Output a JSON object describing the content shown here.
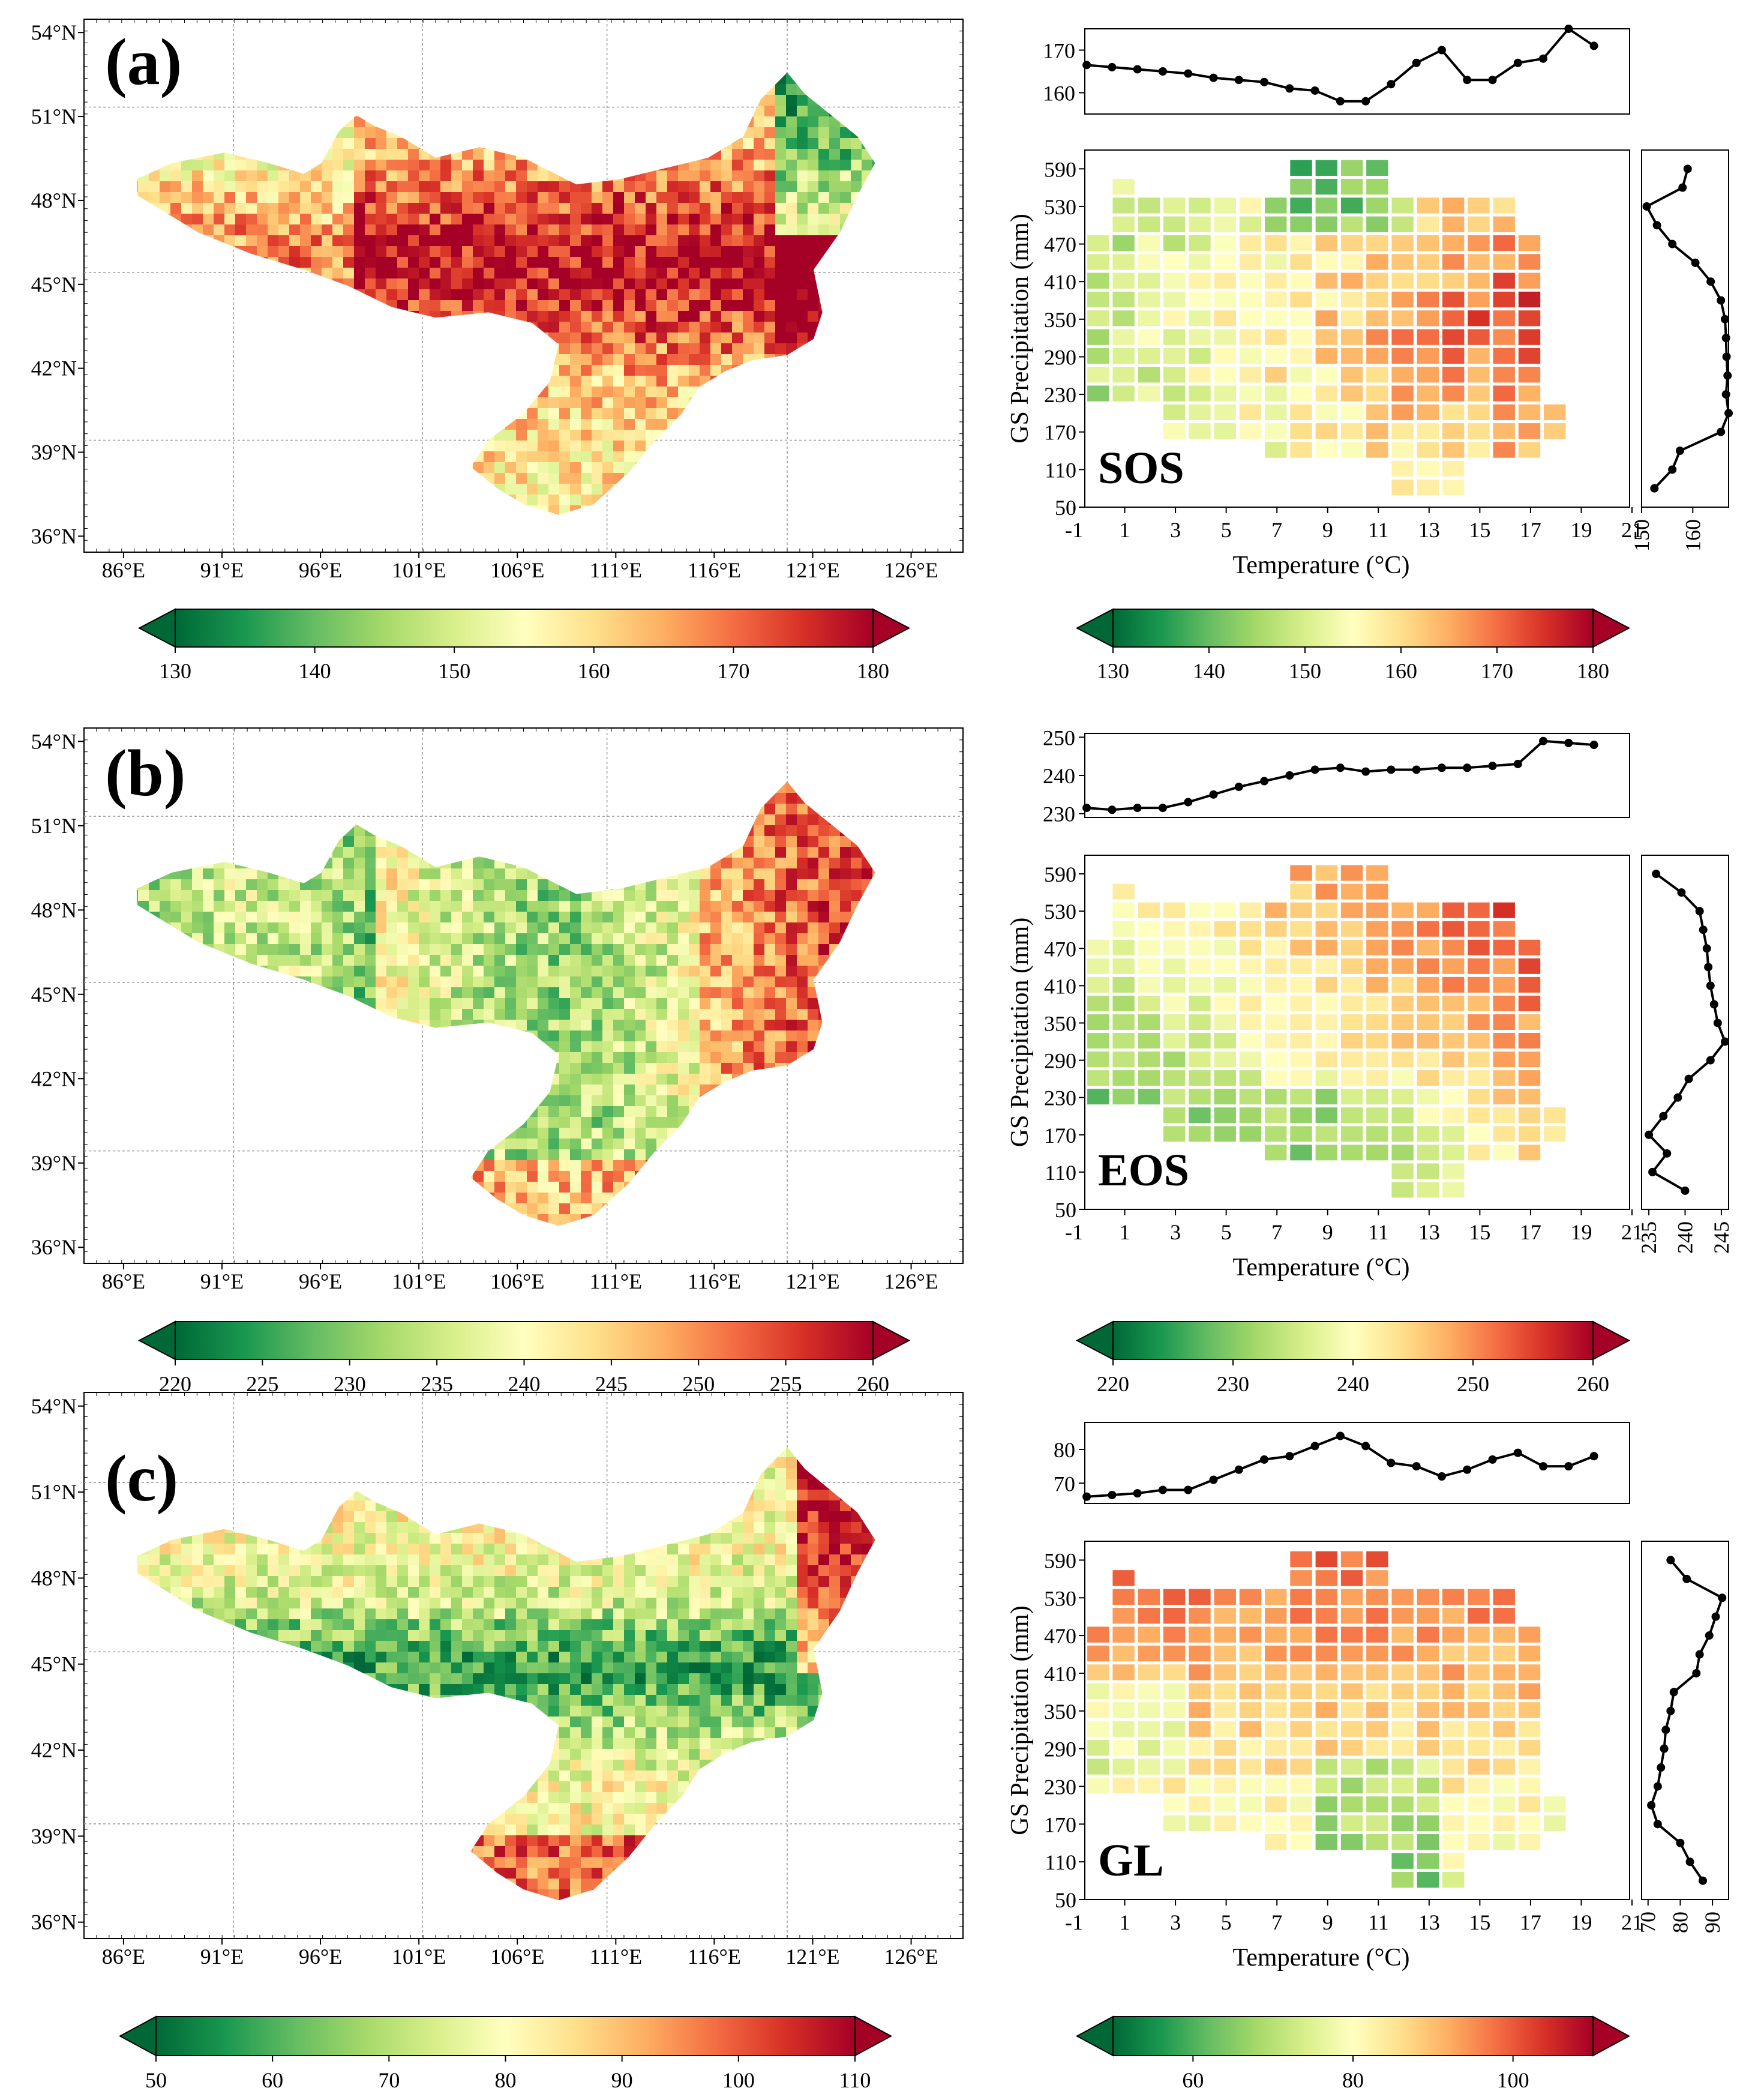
{
  "chart_data": [
    {
      "type": "map",
      "panel": "(a)",
      "description_label": "SOS",
      "lon_ticks": [
        "86°E",
        "91°E",
        "96°E",
        "101°E",
        "106°E",
        "111°E",
        "116°E",
        "121°E",
        "126°E"
      ],
      "lat_ticks": [
        "54°N",
        "51°N",
        "48°N",
        "45°N",
        "42°N",
        "39°N",
        "36°N"
      ],
      "colorbar": {
        "min": 130,
        "max": 180,
        "ticks": [
          "130",
          "140",
          "150",
          "160",
          "170",
          "180"
        ],
        "colormap": "RdYlGn_r"
      },
      "dominant": "high"
    },
    {
      "type": "line",
      "panel": "(a)-top",
      "axis": "temperature",
      "yticks": [
        "170",
        "160"
      ],
      "ylim": [
        155,
        175
      ],
      "x": [
        -0.5,
        0.5,
        1.5,
        2.5,
        3.5,
        4.5,
        5.5,
        6.5,
        7.5,
        8.5,
        9.5,
        10.5,
        11.5,
        12.5,
        13.5,
        14.5,
        15.5,
        16.5,
        17.5,
        18.5,
        19.5
      ],
      "values": [
        166.5,
        166,
        165.5,
        165,
        164.5,
        163.5,
        163,
        162.5,
        161,
        160.5,
        158,
        158,
        162,
        167,
        170,
        163,
        163,
        167,
        168,
        175,
        171
      ]
    },
    {
      "type": "heatmap",
      "panel": "(a)",
      "label": "SOS",
      "xlabel": "Temperature (°C)",
      "ylabel": "GS Precipitation (mm)",
      "xticks": [
        "-1",
        "1",
        "3",
        "5",
        "7",
        "9",
        "11",
        "13",
        "15",
        "17",
        "19",
        "21"
      ],
      "yticks": [
        "590",
        "530",
        "470",
        "410",
        "350",
        "290",
        "230",
        "170",
        "110",
        "50"
      ],
      "colorbar": {
        "min": 130,
        "max": 180,
        "ticks": [
          "130",
          "140",
          "150",
          "160",
          "170",
          "180"
        ]
      }
    },
    {
      "type": "line",
      "panel": "(a)-right",
      "axis": "precipitation",
      "xticks": [
        "150",
        "160"
      ],
      "xlim": [
        150,
        167
      ],
      "y": [
        80,
        110,
        140,
        170,
        200,
        230,
        260,
        290,
        320,
        350,
        380,
        410,
        440,
        470,
        500,
        530,
        560,
        590
      ],
      "values": [
        152.5,
        156,
        157.5,
        165.5,
        167,
        166.5,
        166.8,
        166.6,
        166.5,
        166.3,
        165.5,
        163.5,
        160.5,
        156,
        153,
        151,
        158,
        159
      ]
    },
    {
      "type": "map",
      "panel": "(b)",
      "description_label": "EOS",
      "lon_ticks": [
        "86°E",
        "91°E",
        "96°E",
        "101°E",
        "106°E",
        "111°E",
        "116°E",
        "121°E",
        "126°E"
      ],
      "lat_ticks": [
        "54°N",
        "51°N",
        "48°N",
        "45°N",
        "42°N",
        "39°N",
        "36°N"
      ],
      "colorbar": {
        "min": 220,
        "max": 260,
        "ticks": [
          "220",
          "225",
          "230",
          "235",
          "240",
          "245",
          "250",
          "255",
          "260"
        ],
        "colormap": "RdYlGn_r"
      },
      "dominant": "mid"
    },
    {
      "type": "line",
      "panel": "(b)-top",
      "axis": "temperature",
      "yticks": [
        "250",
        "240",
        "230"
      ],
      "ylim": [
        229,
        251
      ],
      "x": [
        -0.5,
        0.5,
        1.5,
        2.5,
        3.5,
        4.5,
        5.5,
        6.5,
        7.5,
        8.5,
        9.5,
        10.5,
        11.5,
        12.5,
        13.5,
        14.5,
        15.5,
        16.5,
        17.5,
        18.5,
        19.5
      ],
      "values": [
        231.5,
        231,
        231.5,
        231.5,
        233,
        235,
        237,
        238.5,
        240,
        241.5,
        242,
        241,
        241.5,
        241.5,
        242,
        242,
        242.5,
        243,
        249,
        248.5,
        248
      ]
    },
    {
      "type": "heatmap",
      "panel": "(b)",
      "label": "EOS",
      "xlabel": "Temperature (°C)",
      "ylabel": "GS Precipitation (mm)",
      "xticks": [
        "-1",
        "1",
        "3",
        "5",
        "7",
        "9",
        "11",
        "13",
        "15",
        "17",
        "19",
        "21"
      ],
      "yticks": [
        "590",
        "530",
        "470",
        "410",
        "350",
        "290",
        "230",
        "170",
        "110",
        "50"
      ],
      "colorbar": {
        "min": 220,
        "max": 260,
        "ticks": [
          "220",
          "230",
          "240",
          "250",
          "260"
        ]
      }
    },
    {
      "type": "line",
      "panel": "(b)-right",
      "axis": "precipitation",
      "xticks": [
        "235",
        "240",
        "245"
      ],
      "xlim": [
        234,
        246
      ],
      "y": [
        80,
        110,
        140,
        170,
        200,
        230,
        260,
        290,
        320,
        350,
        380,
        410,
        440,
        470,
        500,
        530,
        560,
        590
      ],
      "values": [
        240,
        235.5,
        237.5,
        235,
        237,
        239,
        240.5,
        243.5,
        245.5,
        244.5,
        244,
        243.5,
        243.2,
        243,
        242.5,
        242,
        239.5,
        236
      ]
    },
    {
      "type": "map",
      "panel": "(c)",
      "description_label": "GL",
      "lon_ticks": [
        "86°E",
        "91°E",
        "96°E",
        "101°E",
        "106°E",
        "111°E",
        "116°E",
        "121°E",
        "126°E"
      ],
      "lat_ticks": [
        "54°N",
        "51°N",
        "48°N",
        "45°N",
        "42°N",
        "39°N",
        "36°N"
      ],
      "colorbar": {
        "min": 50,
        "max": 110,
        "ticks": [
          "50",
          "60",
          "70",
          "80",
          "90",
          "100",
          "110"
        ],
        "colormap": "RdYlGn_r"
      },
      "dominant": "low"
    },
    {
      "type": "line",
      "panel": "(c)-top",
      "axis": "temperature",
      "yticks": [
        "80",
        "70"
      ],
      "ylim": [
        64,
        88
      ],
      "x": [
        -0.5,
        0.5,
        1.5,
        2.5,
        3.5,
        4.5,
        5.5,
        6.5,
        7.5,
        8.5,
        9.5,
        10.5,
        11.5,
        12.5,
        13.5,
        14.5,
        15.5,
        16.5,
        17.5,
        18.5,
        19.5
      ],
      "values": [
        66,
        66.5,
        67,
        68,
        68,
        71,
        74,
        77,
        78,
        81,
        84,
        81,
        76,
        75,
        72,
        74,
        77,
        79,
        75,
        75,
        78
      ]
    },
    {
      "type": "heatmap",
      "panel": "(c)",
      "label": "GL",
      "xlabel": "Temperature (°C)",
      "ylabel": "GS Precipitation (mm)",
      "xticks": [
        "-1",
        "1",
        "3",
        "5",
        "7",
        "9",
        "11",
        "13",
        "15",
        "17",
        "19",
        "21"
      ],
      "yticks": [
        "590",
        "530",
        "470",
        "410",
        "350",
        "290",
        "230",
        "170",
        "110",
        "50"
      ],
      "colorbar": {
        "min": 50,
        "max": 110,
        "ticks": [
          "60",
          "80",
          "100"
        ]
      }
    },
    {
      "type": "line",
      "panel": "(c)-right",
      "axis": "precipitation",
      "xticks": [
        "70",
        "80",
        "90"
      ],
      "xlim": [
        68,
        95
      ],
      "y": [
        80,
        110,
        140,
        170,
        200,
        230,
        260,
        290,
        320,
        350,
        380,
        410,
        440,
        470,
        500,
        530,
        560,
        590
      ],
      "values": [
        87,
        83,
        80,
        73,
        71,
        73,
        74,
        75,
        75.5,
        77,
        78,
        85,
        86,
        89,
        91,
        93,
        82,
        77
      ]
    }
  ]
}
